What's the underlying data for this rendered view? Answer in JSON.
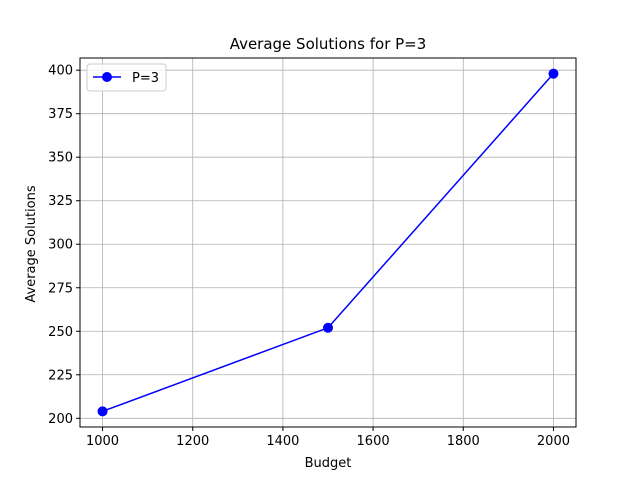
{
  "chart_data": {
    "type": "line",
    "title": "Average Solutions for P=3",
    "xlabel": "Budget",
    "ylabel": "Average Solutions",
    "xlim": [
      950,
      2050
    ],
    "ylim": [
      195,
      407
    ],
    "xticks": [
      1000,
      1200,
      1400,
      1600,
      1800,
      2000
    ],
    "yticks": [
      200,
      225,
      250,
      275,
      300,
      325,
      350,
      375,
      400
    ],
    "grid": true,
    "legend_position": "top-left",
    "series": [
      {
        "name": "P=3",
        "color": "#0000ff",
        "marker": "circle",
        "x": [
          1000,
          1500,
          2000
        ],
        "y": [
          204,
          252,
          398
        ]
      }
    ]
  }
}
